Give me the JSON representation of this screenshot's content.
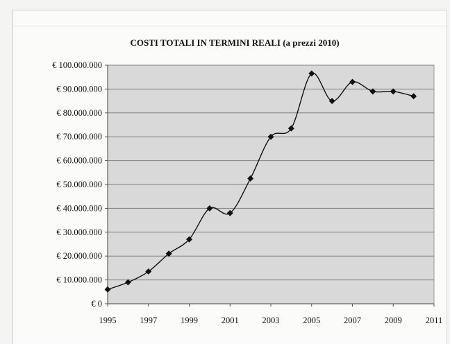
{
  "chart_data": {
    "type": "line",
    "title": "COSTI TOTALI IN TERMINI REALI (a prezzi 2010)",
    "xlabel": "",
    "ylabel": "",
    "x": [
      1995,
      1996,
      1997,
      1998,
      1999,
      2000,
      2001,
      2002,
      2003,
      2004,
      2005,
      2006,
      2007,
      2008,
      2009,
      2010
    ],
    "series": [
      {
        "values": [
          6000000,
          9000000,
          13500000,
          21000000,
          27000000,
          40000000,
          38000000,
          52500000,
          70000000,
          73500000,
          96500000,
          85000000,
          93000000,
          89000000,
          89000000,
          87000000
        ]
      }
    ],
    "xlim": [
      1995,
      2011
    ],
    "ylim": [
      0,
      100000000
    ],
    "x_ticks": [
      "1995",
      "1997",
      "1999",
      "2001",
      "2003",
      "2005",
      "2007",
      "2009",
      "2011"
    ],
    "y_ticks": [
      "€ 0",
      "€ 10.000.000",
      "€ 20.000.000",
      "€ 30.000.000",
      "€ 40.000.000",
      "€ 50.000.000",
      "€ 60.000.000",
      "€ 70.000.000",
      "€ 80.000.000",
      "€ 90.000.000",
      "€ 100.000.000"
    ],
    "grid": true,
    "legend": "none",
    "colors": {
      "line": "#111111",
      "marker": "#111111",
      "plot_bg": "#d9d9d9",
      "grid": "#808080"
    }
  }
}
